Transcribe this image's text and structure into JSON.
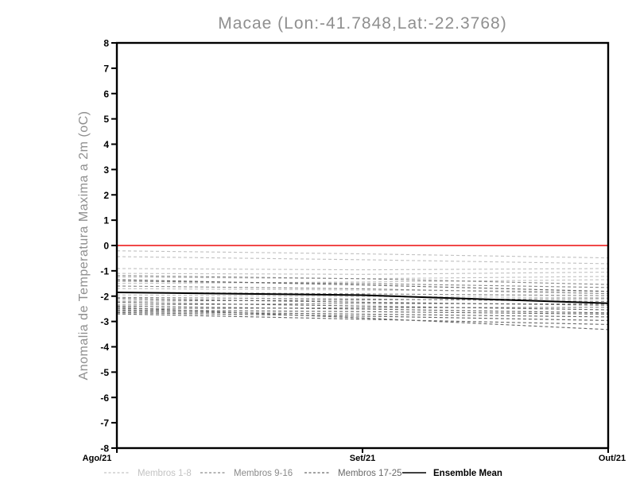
{
  "chart_data": {
    "type": "line",
    "title": "Macae (Lon:-41.7848,Lat:-22.3768)",
    "ylabel": "Anomalia de Temperatura Maxima a 2m (oC)",
    "xlabel": "",
    "x_tick_labels": [
      "Ago/21",
      "Set/21",
      "Out/21"
    ],
    "ylim": [
      -8,
      8
    ],
    "y_tick_step": 1,
    "grid": false,
    "frame_color": "#000000",
    "zero_line": {
      "y": 0,
      "color": "#f04848"
    },
    "groups": [
      {
        "name": "Membros 1-8",
        "color": "#c3c3c3",
        "style": "dashed",
        "members": [
          [
            -0.21,
            -0.33,
            -0.49
          ],
          [
            -0.44,
            -0.56,
            -0.72
          ],
          [
            -0.91,
            -0.96,
            -0.91
          ],
          [
            -1.1,
            -1.14,
            -1.05
          ],
          [
            -1.25,
            -1.31,
            -1.22
          ],
          [
            -1.5,
            -1.44,
            -1.35
          ],
          [
            -1.7,
            -1.76,
            -1.82
          ],
          [
            -1.95,
            -2.01,
            -2.06
          ]
        ]
      },
      {
        "name": "Membros 9-16",
        "color": "#8a8a8a",
        "style": "dashed",
        "members": [
          [
            -1.19,
            -1.31,
            -1.54
          ],
          [
            -1.41,
            -1.5,
            -1.66
          ],
          [
            -1.6,
            -1.71,
            -1.9
          ],
          [
            -1.85,
            -1.91,
            -1.98
          ],
          [
            -2.05,
            -2.11,
            -2.21
          ],
          [
            -2.2,
            -2.15,
            -2.1
          ],
          [
            -2.35,
            -2.29,
            -2.31
          ],
          [
            -2.5,
            -2.46,
            -2.44
          ]
        ]
      },
      {
        "name": "Membros 17-25",
        "color": "#696969",
        "style": "dashed",
        "members": [
          [
            -1.35,
            -1.56,
            -1.81
          ],
          [
            -2.1,
            -2.24,
            -2.36
          ],
          [
            -2.25,
            -2.39,
            -2.54
          ],
          [
            -2.4,
            -2.51,
            -2.66
          ],
          [
            -2.55,
            -2.61,
            -2.71
          ],
          [
            -2.6,
            -2.71,
            -2.82
          ],
          [
            -2.65,
            -2.79,
            -2.96
          ],
          [
            -2.7,
            -2.91,
            -3.12
          ],
          [
            -2.45,
            -2.86,
            -3.32
          ]
        ]
      }
    ],
    "ensemble_mean": {
      "name": "Ensemble Mean",
      "color": "#000000",
      "style": "solid",
      "values": [
        -1.85,
        -1.96,
        -2.28
      ]
    },
    "legend": {
      "position": "bottom",
      "items": [
        {
          "label": "Membros 1-8",
          "color": "#c3c3c3",
          "style": "dashed"
        },
        {
          "label": "Membros 9-16",
          "color": "#8a8a8a",
          "style": "dashed"
        },
        {
          "label": "Membros 17-25",
          "color": "#696969",
          "style": "dashed"
        },
        {
          "label": "Ensemble Mean",
          "color": "#000000",
          "style": "solid"
        }
      ]
    }
  }
}
